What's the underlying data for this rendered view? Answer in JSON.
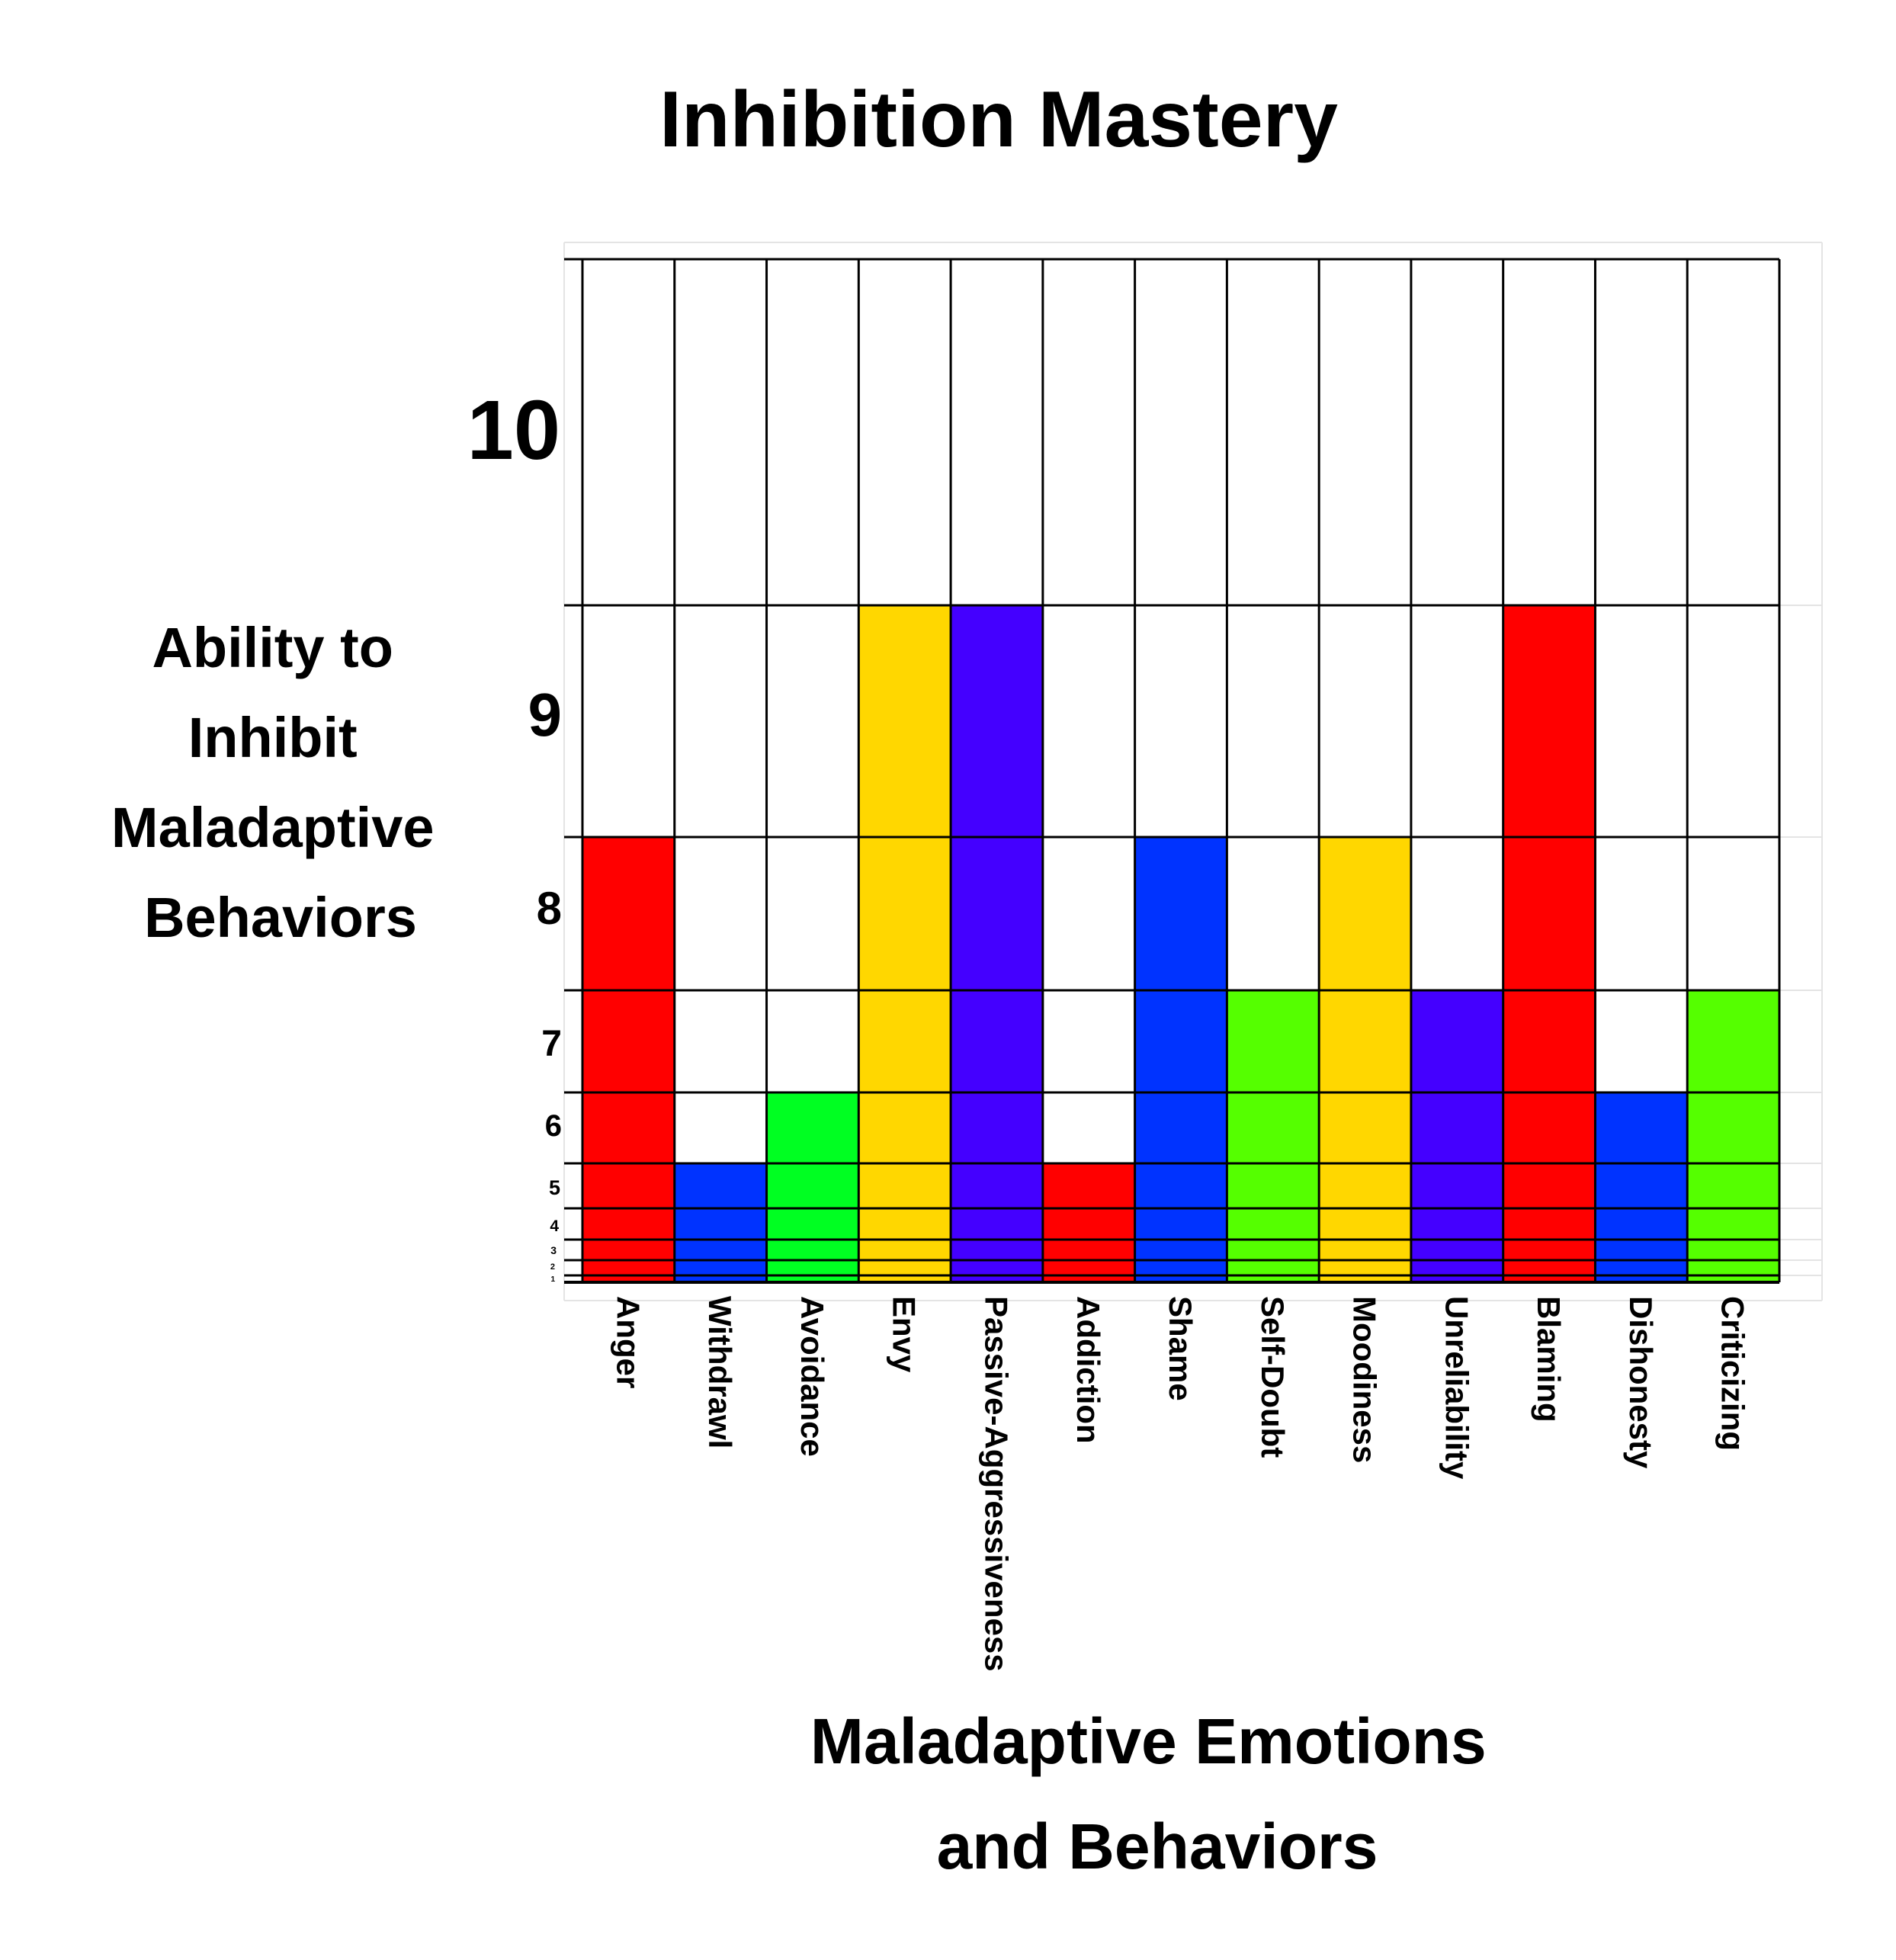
{
  "chart_data": {
    "type": "bar",
    "title": "Inhibition Mastery",
    "ylabel_lines": [
      "Ability to",
      "Inhibit",
      "Maladaptive",
      "Behaviors"
    ],
    "xlabel_lines": [
      "Maladaptive Emotions",
      "and Behaviors"
    ],
    "ylim": [
      0,
      10
    ],
    "y_ticks": [
      "1",
      "2",
      "3",
      "4",
      "5",
      "6",
      "7",
      "8",
      "9",
      "10"
    ],
    "scale": "nonlinear (spacing increases with level)",
    "grid": true,
    "categories": [
      "Anger",
      "Withdrawl",
      "Avoidance",
      "Envy",
      "Passive-Aggressiveness",
      "Addiction",
      "Shame",
      "Self-Doubt",
      "Moodiness",
      "Unreliability",
      "Blaming",
      "Dishonesty",
      "Criticizing"
    ],
    "values": [
      8,
      5,
      6,
      9,
      9,
      5,
      8,
      7,
      8,
      7,
      9,
      6,
      7
    ],
    "colors": [
      "#ff0000",
      "#0033ff",
      "#00ff22",
      "#ffd700",
      "#4400ff",
      "#ff0000",
      "#0033ff",
      "#55ff00",
      "#ffd700",
      "#4400ff",
      "#ff0000",
      "#0033ff",
      "#55ff00"
    ]
  }
}
